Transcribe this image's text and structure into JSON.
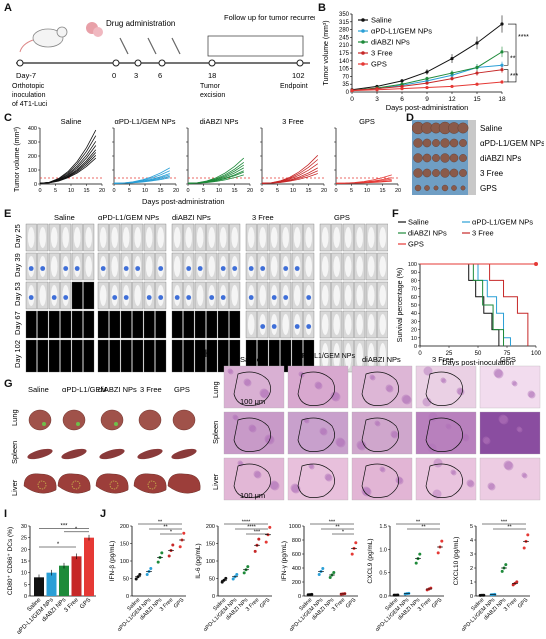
{
  "panels": {
    "A": "A",
    "B": "B",
    "C": "C",
    "D": "D",
    "E": "E",
    "F": "F",
    "G": "G",
    "H": "H",
    "I": "I",
    "J": "J"
  },
  "colors": {
    "saline": "#111111",
    "pdl1": "#2a9fd6",
    "diabzi": "#1e8a3a",
    "free3": "#c62828",
    "gps": "#e53935"
  },
  "panelA": {
    "drug_admin": "Drug administration",
    "follow_up": "Follow up for tumor recurrence",
    "days": [
      "Day-7",
      "0",
      "3",
      "6",
      "18",
      "102"
    ],
    "under_day7": [
      "Orthotopic",
      "inoculation",
      "of 4T1-Luci"
    ],
    "under_18": [
      "Tumor",
      "excision"
    ],
    "under_102": "Endpoint"
  },
  "panelB": {
    "ylabel": "Tumor volume (mm³)",
    "xlabel": "Days post-administration",
    "yticks": [
      "0",
      "35",
      "70",
      "105",
      "140",
      "175",
      "210",
      "245",
      "280",
      "315",
      "350"
    ],
    "xticks": [
      "0",
      "3",
      "6",
      "9",
      "12",
      "15",
      "18"
    ],
    "legend": [
      "Saline",
      "αPD-L1/GEM NPs",
      "diABZI NPs",
      "3 Free",
      "GPS"
    ],
    "sig": [
      "****",
      "**",
      "***"
    ]
  },
  "panelC": {
    "ylabel": "Tumor volume (mm³)",
    "xlabel": "Days post-administration",
    "titles": [
      "Saline",
      "αPD-L1/GEM NPs",
      "diABZI NPs",
      "3 Free",
      "GPS"
    ],
    "yticks": [
      "0",
      "100",
      "200",
      "300",
      "400"
    ],
    "xticks": [
      "0",
      "5",
      "10",
      "15",
      "20"
    ]
  },
  "panelD": {
    "labels": [
      "Saline",
      "αPD-L1/GEM NPs",
      "diABZI NPs",
      "3 Free",
      "GPS"
    ]
  },
  "panelE": {
    "groups": [
      "Saline",
      "αPD-L1/GEM NPs",
      "diABZI NPs",
      "3 Free",
      "GPS"
    ],
    "days": [
      "Day 25",
      "Day 39",
      "Day 53",
      "Day 67",
      "Day 102"
    ]
  },
  "panelF": {
    "ylabel": "Survival percentage (%)",
    "xlabel": "Days post-inoculation",
    "legend": [
      "Saline",
      "αPD-L1/GEM NPs",
      "diABZI NPs",
      "3 Free",
      "GPS"
    ],
    "yticks": [
      "0",
      "10",
      "20",
      "30",
      "40",
      "50",
      "60",
      "70",
      "80",
      "90",
      "100"
    ],
    "xticks": [
      "0",
      "25",
      "50",
      "75",
      "100"
    ]
  },
  "panelG": {
    "cols": [
      "Saline",
      "αPD-L1/GEM",
      "diABZI NPs",
      "3 Free",
      "GPS"
    ],
    "rows": [
      "Lung",
      "Spleen",
      "Liver"
    ]
  },
  "panelH": {
    "cols": [
      "Saline",
      "αPD-L1/GEM NPs",
      "diABZI NPs",
      "3 Free",
      "GPS"
    ],
    "rows": [
      "Lung",
      "Spleen",
      "Liver"
    ],
    "scale": "100 μm"
  },
  "panelI": {
    "ylabel": "CD80⁺ CD86⁺ DCs (%)",
    "yticks": [
      "0",
      "5",
      "10",
      "15",
      "20",
      "25",
      "30"
    ],
    "cats": [
      "Saline",
      "αPD-L1/GEM NPs",
      "diABZI NPs",
      "3 Free",
      "GPS"
    ],
    "sig": [
      "***",
      "*",
      "*"
    ]
  },
  "panelJ": {
    "cats": [
      "Saline",
      "αPD-L1/GEM NPs",
      "diABZI NPs",
      "3 Free",
      "GPS"
    ],
    "plots": [
      {
        "ylabel": "IFN-β (pg/mL)",
        "yticks": [
          "0",
          "50",
          "100",
          "150",
          "200"
        ],
        "sig": [
          "**",
          "**",
          "*"
        ]
      },
      {
        "ylabel": "IL-6 (pg/mL)",
        "yticks": [
          "0",
          "50",
          "100",
          "150",
          "200"
        ],
        "sig": [
          "****",
          "****",
          "***"
        ]
      },
      {
        "ylabel": "IFN-γ (pg/mL)",
        "yticks": [
          "0",
          "200",
          "400",
          "600",
          "800",
          "1000"
        ],
        "sig": [
          "***",
          "**",
          "*"
        ]
      },
      {
        "ylabel": "CXCL9 (pg/mL)",
        "yticks": [
          "0.0",
          "0.5",
          "1.0",
          "1.5"
        ],
        "sig": [
          "**",
          "**"
        ]
      },
      {
        "ylabel": "CXCL10 (pg/mL)",
        "yticks": [
          "0",
          "1",
          "2",
          "3",
          "4",
          "5"
        ],
        "sig": [
          "***",
          "**"
        ]
      }
    ]
  },
  "chart_data": [
    {
      "type": "line",
      "title": "",
      "xlabel": "Days post-administration",
      "ylabel": "Tumor volume (mm³)",
      "x": [
        0,
        3,
        6,
        9,
        12,
        15,
        18
      ],
      "ylim": [
        0,
        350
      ],
      "series": [
        {
          "name": "Saline",
          "values": [
            10,
            25,
            50,
            90,
            150,
            220,
            305
          ]
        },
        {
          "name": "αPD-L1/GEM NPs",
          "values": [
            8,
            15,
            30,
            50,
            75,
            110,
            120
          ]
        },
        {
          "name": "diABZI NPs",
          "values": [
            8,
            18,
            35,
            60,
            85,
            110,
            180
          ]
        },
        {
          "name": "3 Free",
          "values": [
            8,
            15,
            25,
            40,
            60,
            85,
            100
          ]
        },
        {
          "name": "GPS",
          "values": [
            6,
            10,
            15,
            20,
            25,
            35,
            45
          ]
        }
      ]
    },
    {
      "type": "line",
      "title": "",
      "xlabel": "Days post-inoculation",
      "ylabel": "Survival percentage (%)",
      "x": [
        0,
        25,
        50,
        75,
        100
      ],
      "ylim": [
        0,
        100
      ],
      "series": [
        {
          "name": "Saline",
          "values": [
            100,
            100,
            60,
            0,
            0
          ]
        },
        {
          "name": "αPD-L1/GEM NPs",
          "values": [
            100,
            100,
            80,
            10,
            0
          ]
        },
        {
          "name": "diABZI NPs",
          "values": [
            100,
            100,
            70,
            0,
            0
          ]
        },
        {
          "name": "3 Free",
          "values": [
            100,
            100,
            90,
            50,
            0
          ]
        },
        {
          "name": "GPS",
          "values": [
            100,
            100,
            100,
            100,
            100
          ]
        }
      ]
    },
    {
      "type": "bar",
      "title": "",
      "ylabel": "CD80⁺ CD86⁺ DCs (%)",
      "categories": [
        "Saline",
        "αPD-L1/GEM NPs",
        "diABZI NPs",
        "3 Free",
        "GPS"
      ],
      "values": [
        8,
        10,
        13,
        17,
        25
      ],
      "ylim": [
        0,
        30
      ]
    }
  ]
}
